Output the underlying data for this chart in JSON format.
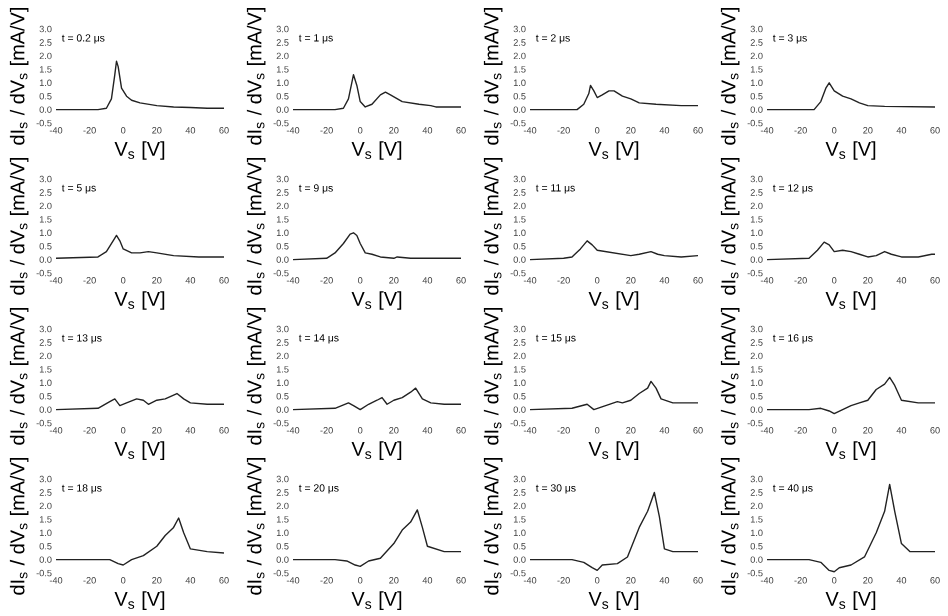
{
  "chart_data": [
    {
      "type": "line",
      "title": "t = 0.2 μs",
      "xlabel": "V$_{s}$ [V]",
      "ylabel": "dI$_{s}$ / dV$_{s}$ [mA/V]",
      "color": "#222222",
      "xlim": [
        -40,
        60
      ],
      "ylim": [
        -0.5,
        3.0
      ],
      "xticks": [
        -40,
        -20,
        0,
        20,
        40,
        60
      ],
      "yticks": [
        -0.5,
        {
          "value": 0,
          "label": "0.0"
        },
        0.5,
        {
          "value": 1,
          "label": "1.0"
        },
        1.5,
        {
          "value": 2,
          "label": "2.0"
        },
        2.5,
        {
          "value": 3,
          "label": "3.0"
        }
      ],
      "x": [
        -40,
        -15,
        -10,
        -7,
        -5,
        -4,
        -3,
        -1,
        2,
        5,
        10,
        20,
        30,
        40,
        50,
        60
      ],
      "values": [
        0.0,
        0.0,
        0.05,
        0.4,
        1.3,
        1.8,
        1.6,
        0.8,
        0.5,
        0.35,
        0.25,
        0.15,
        0.1,
        0.08,
        0.05,
        0.05
      ]
    },
    {
      "type": "line",
      "title": "t = 1 μs",
      "xlabel": "V$_{s}$ [V]",
      "ylabel": "dI$_{s}$ / dV$_{s}$ [mA/V]",
      "color": "#222222",
      "xlim": [
        -40,
        60
      ],
      "ylim": [
        -0.5,
        3.0
      ],
      "xticks": [
        -40,
        -20,
        0,
        20,
        40,
        60
      ],
      "yticks": [
        -0.5,
        {
          "value": 0,
          "label": "0.0"
        },
        0.5,
        {
          "value": 1,
          "label": "1.0"
        },
        1.5,
        {
          "value": 2,
          "label": "2.0"
        },
        2.5,
        {
          "value": 3,
          "label": "3.0"
        }
      ],
      "x": [
        -40,
        -15,
        -10,
        -7,
        -4,
        -2,
        0,
        3,
        7,
        12,
        15,
        18,
        25,
        35,
        42,
        45,
        60
      ],
      "values": [
        0.0,
        0.0,
        0.05,
        0.4,
        1.3,
        0.9,
        0.3,
        0.1,
        0.2,
        0.55,
        0.65,
        0.55,
        0.3,
        0.2,
        0.15,
        0.1,
        0.1
      ]
    },
    {
      "type": "line",
      "title": "t = 2 μs",
      "xlabel": "V$_{s}$ [V]",
      "ylabel": "dI$_{s}$ / dV$_{s}$ [mA/V]",
      "color": "#222222",
      "xlim": [
        -40,
        60
      ],
      "ylim": [
        -0.5,
        3.0
      ],
      "xticks": [
        -40,
        -20,
        0,
        20,
        40,
        60
      ],
      "yticks": [
        -0.5,
        {
          "value": 0,
          "label": "0.0"
        },
        0.5,
        {
          "value": 1,
          "label": "1.0"
        },
        1.5,
        {
          "value": 2,
          "label": "2.0"
        },
        2.5,
        {
          "value": 3,
          "label": "3.0"
        }
      ],
      "x": [
        -40,
        -12,
        -8,
        -5,
        -4,
        -2,
        0,
        3,
        7,
        10,
        15,
        20,
        25,
        35,
        50,
        60
      ],
      "values": [
        0.0,
        0.0,
        0.2,
        0.6,
        0.9,
        0.7,
        0.45,
        0.55,
        0.7,
        0.7,
        0.5,
        0.4,
        0.25,
        0.2,
        0.15,
        0.15
      ]
    },
    {
      "type": "line",
      "title": "t = 3 μs",
      "xlabel": "V$_{s}$ [V]",
      "ylabel": "dI$_{s}$ / dV$_{s}$ [mA/V]",
      "color": "#222222",
      "xlim": [
        -40,
        60
      ],
      "ylim": [
        -0.5,
        3.0
      ],
      "xticks": [
        -40,
        -20,
        0,
        20,
        40,
        60
      ],
      "yticks": [
        -0.5,
        {
          "value": 0,
          "label": "0.0"
        },
        0.5,
        {
          "value": 1,
          "label": "1.0"
        },
        1.5,
        {
          "value": 2,
          "label": "2.0"
        },
        2.5,
        {
          "value": 3,
          "label": "3.0"
        }
      ],
      "x": [
        -40,
        -12,
        -8,
        -5,
        -3,
        0,
        5,
        10,
        15,
        20,
        30,
        60
      ],
      "values": [
        0.0,
        0.0,
        0.3,
        0.8,
        1.0,
        0.7,
        0.5,
        0.4,
        0.25,
        0.15,
        0.12,
        0.1
      ]
    },
    {
      "type": "line",
      "title": "t = 5 μs",
      "xlabel": "V$_{s}$ [V]",
      "ylabel": "dI$_{s}$ / dV$_{s}$ [mA/V]",
      "color": "#222222",
      "xlim": [
        -40,
        60
      ],
      "ylim": [
        -0.5,
        3.0
      ],
      "xticks": [
        -40,
        -20,
        0,
        20,
        40,
        60
      ],
      "yticks": [
        -0.5,
        {
          "value": 0,
          "label": "0.0"
        },
        0.5,
        {
          "value": 1,
          "label": "1.0"
        },
        1.5,
        {
          "value": 2,
          "label": "2.0"
        },
        2.5,
        {
          "value": 3,
          "label": "3.0"
        }
      ],
      "x": [
        -40,
        -15,
        -10,
        -6,
        -4,
        -2,
        0,
        5,
        10,
        15,
        20,
        30,
        45,
        60
      ],
      "values": [
        0.05,
        0.1,
        0.3,
        0.7,
        0.9,
        0.7,
        0.4,
        0.25,
        0.25,
        0.3,
        0.25,
        0.15,
        0.1,
        0.1
      ]
    },
    {
      "type": "line",
      "title": "t = 9 μs",
      "xlabel": "V$_{s}$ [V]",
      "ylabel": "dI$_{s}$ / dV$_{s}$ [mA/V]",
      "color": "#222222",
      "xlim": [
        -40,
        60
      ],
      "ylim": [
        -0.5,
        3.0
      ],
      "xticks": [
        -40,
        -20,
        0,
        20,
        40,
        60
      ],
      "yticks": [
        -0.5,
        {
          "value": 0,
          "label": "0.0"
        },
        0.5,
        {
          "value": 1,
          "label": "1.0"
        },
        1.5,
        {
          "value": 2,
          "label": "2.0"
        },
        2.5,
        {
          "value": 3,
          "label": "3.0"
        }
      ],
      "x": [
        -40,
        -20,
        -15,
        -10,
        -6,
        -4,
        -2,
        0,
        3,
        7,
        12,
        20,
        22,
        30,
        60
      ],
      "values": [
        0.0,
        0.05,
        0.25,
        0.6,
        0.95,
        1.0,
        0.9,
        0.6,
        0.25,
        0.2,
        0.1,
        0.05,
        0.1,
        0.05,
        0.05
      ]
    },
    {
      "type": "line",
      "title": "t = 11 μs",
      "xlabel": "V$_{s}$ [V]",
      "ylabel": "dI$_{s}$ / dV$_{s}$ [mA/V]",
      "color": "#222222",
      "xlim": [
        -40,
        60
      ],
      "ylim": [
        -0.5,
        3.0
      ],
      "xticks": [
        -40,
        -20,
        0,
        20,
        40,
        60
      ],
      "yticks": [
        -0.5,
        {
          "value": 0,
          "label": "0.0"
        },
        0.5,
        {
          "value": 1,
          "label": "1.0"
        },
        1.5,
        {
          "value": 2,
          "label": "2.0"
        },
        2.5,
        {
          "value": 3,
          "label": "3.0"
        }
      ],
      "x": [
        -40,
        -20,
        -15,
        -10,
        -6,
        -3,
        0,
        5,
        10,
        15,
        20,
        25,
        32,
        36,
        40,
        50,
        60
      ],
      "values": [
        0.0,
        0.05,
        0.1,
        0.4,
        0.7,
        0.55,
        0.35,
        0.3,
        0.25,
        0.2,
        0.15,
        0.2,
        0.3,
        0.2,
        0.15,
        0.1,
        0.15
      ]
    },
    {
      "type": "line",
      "title": "t = 12 μs",
      "xlabel": "V$_{s}$ [V]",
      "ylabel": "dI$_{s}$ / dV$_{s}$ [mA/V]",
      "color": "#222222",
      "xlim": [
        -40,
        60
      ],
      "ylim": [
        -0.5,
        3.0
      ],
      "xticks": [
        -40,
        -20,
        0,
        20,
        40,
        60
      ],
      "yticks": [
        -0.5,
        {
          "value": 0,
          "label": "0.0"
        },
        0.5,
        {
          "value": 1,
          "label": "1.0"
        },
        1.5,
        {
          "value": 2,
          "label": "2.0"
        },
        2.5,
        {
          "value": 3,
          "label": "3.0"
        }
      ],
      "x": [
        -40,
        -15,
        -10,
        -6,
        -3,
        0,
        5,
        10,
        15,
        20,
        25,
        30,
        34,
        40,
        50,
        58,
        60
      ],
      "values": [
        0.0,
        0.05,
        0.35,
        0.65,
        0.55,
        0.3,
        0.35,
        0.3,
        0.2,
        0.1,
        0.15,
        0.3,
        0.2,
        0.1,
        0.1,
        0.2,
        0.2
      ]
    },
    {
      "type": "line",
      "title": "t = 13 μs",
      "xlabel": "V$_{s}$ [V]",
      "ylabel": "dI$_{s}$ / dV$_{s}$ [mA/V]",
      "color": "#222222",
      "xlim": [
        -40,
        60
      ],
      "ylim": [
        -0.5,
        3.0
      ],
      "xticks": [
        -40,
        -20,
        0,
        20,
        40,
        60
      ],
      "yticks": [
        -0.5,
        {
          "value": 0,
          "label": "0.0"
        },
        0.5,
        {
          "value": 1,
          "label": "1.0"
        },
        1.5,
        {
          "value": 2,
          "label": "2.0"
        },
        2.5,
        {
          "value": 3,
          "label": "3.0"
        }
      ],
      "x": [
        -40,
        -15,
        -8,
        -5,
        -2,
        2,
        8,
        12,
        15,
        20,
        25,
        32,
        36,
        40,
        50,
        60
      ],
      "values": [
        0.0,
        0.05,
        0.3,
        0.4,
        0.15,
        0.25,
        0.4,
        0.35,
        0.2,
        0.35,
        0.4,
        0.6,
        0.4,
        0.25,
        0.2,
        0.2
      ]
    },
    {
      "type": "line",
      "title": "t = 14 μs",
      "xlabel": "V$_{s}$ [V]",
      "ylabel": "dI$_{s}$ / dV$_{s}$ [mA/V]",
      "color": "#222222",
      "xlim": [
        -40,
        60
      ],
      "ylim": [
        -0.5,
        3.0
      ],
      "xticks": [
        -40,
        -20,
        0,
        20,
        40,
        60
      ],
      "yticks": [
        -0.5,
        {
          "value": 0,
          "label": "0.0"
        },
        0.5,
        {
          "value": 1,
          "label": "1.0"
        },
        1.5,
        {
          "value": 2,
          "label": "2.0"
        },
        2.5,
        {
          "value": 3,
          "label": "3.0"
        }
      ],
      "x": [
        -40,
        -15,
        -7,
        -4,
        0,
        5,
        10,
        13,
        16,
        20,
        25,
        30,
        33,
        37,
        42,
        50,
        60
      ],
      "values": [
        0.0,
        0.05,
        0.25,
        0.15,
        0.0,
        0.2,
        0.35,
        0.45,
        0.2,
        0.35,
        0.45,
        0.65,
        0.8,
        0.4,
        0.25,
        0.2,
        0.2
      ]
    },
    {
      "type": "line",
      "title": "t = 15 μs",
      "xlabel": "V$_{s}$ [V]",
      "ylabel": "dI$_{s}$ / dV$_{s}$ [mA/V]",
      "color": "#222222",
      "xlim": [
        -40,
        60
      ],
      "ylim": [
        -0.5,
        3.0
      ],
      "xticks": [
        -40,
        -20,
        0,
        20,
        40,
        60
      ],
      "yticks": [
        -0.5,
        {
          "value": 0,
          "label": "0.0"
        },
        0.5,
        {
          "value": 1,
          "label": "1.0"
        },
        1.5,
        {
          "value": 2,
          "label": "2.0"
        },
        2.5,
        {
          "value": 3,
          "label": "3.0"
        }
      ],
      "x": [
        -40,
        -15,
        -6,
        -2,
        5,
        12,
        15,
        20,
        25,
        30,
        32,
        35,
        38,
        45,
        60
      ],
      "values": [
        0.0,
        0.05,
        0.2,
        0.0,
        0.15,
        0.3,
        0.25,
        0.35,
        0.6,
        0.8,
        1.05,
        0.8,
        0.4,
        0.25,
        0.25
      ]
    },
    {
      "type": "line",
      "title": "t = 16 μs",
      "xlabel": "V$_{s}$ [V]",
      "ylabel": "dI$_{s}$ / dV$_{s}$ [mA/V]",
      "color": "#222222",
      "xlim": [
        -40,
        60
      ],
      "ylim": [
        -0.5,
        3.0
      ],
      "xticks": [
        -40,
        -20,
        0,
        20,
        40,
        60
      ],
      "yticks": [
        -0.5,
        {
          "value": 0,
          "label": "0.0"
        },
        0.5,
        {
          "value": 1,
          "label": "1.0"
        },
        1.5,
        {
          "value": 2,
          "label": "2.0"
        },
        2.5,
        {
          "value": 3,
          "label": "3.0"
        }
      ],
      "x": [
        -40,
        -15,
        -8,
        -3,
        0,
        5,
        10,
        15,
        20,
        25,
        30,
        33,
        36,
        40,
        50,
        60
      ],
      "values": [
        0.0,
        0.0,
        0.05,
        -0.05,
        -0.15,
        0.0,
        0.15,
        0.25,
        0.35,
        0.75,
        0.95,
        1.2,
        0.9,
        0.35,
        0.25,
        0.25
      ]
    },
    {
      "type": "line",
      "title": "t = 18 μs",
      "xlabel": "V$_{s}$ [V]",
      "ylabel": "dI$_{s}$ / dV$_{s}$ [mA/V]",
      "color": "#222222",
      "xlim": [
        -40,
        60
      ],
      "ylim": [
        -0.5,
        3.0
      ],
      "xticks": [
        -40,
        -20,
        0,
        20,
        40,
        60
      ],
      "yticks": [
        -0.5,
        {
          "value": 0,
          "label": "0.0"
        },
        0.5,
        {
          "value": 1,
          "label": "1.0"
        },
        1.5,
        {
          "value": 2,
          "label": "2.0"
        },
        2.5,
        {
          "value": 3,
          "label": "3.0"
        }
      ],
      "x": [
        -40,
        -15,
        -8,
        -3,
        0,
        5,
        12,
        20,
        25,
        30,
        33,
        36,
        40,
        50,
        60
      ],
      "values": [
        0.0,
        0.0,
        0.0,
        -0.15,
        -0.2,
        0.0,
        0.15,
        0.5,
        0.9,
        1.2,
        1.55,
        1.0,
        0.4,
        0.3,
        0.25
      ]
    },
    {
      "type": "line",
      "title": "t = 20 μs",
      "xlabel": "V$_{s}$ [V]",
      "ylabel": "dI$_{s}$ / dV$_{s}$ [mA/V]",
      "color": "#222222",
      "xlim": [
        -40,
        60
      ],
      "ylim": [
        -0.5,
        3.0
      ],
      "xticks": [
        -40,
        -20,
        0,
        20,
        40,
        60
      ],
      "yticks": [
        -0.5,
        {
          "value": 0,
          "label": "0.0"
        },
        0.5,
        {
          "value": 1,
          "label": "1.0"
        },
        1.5,
        {
          "value": 2,
          "label": "2.0"
        },
        2.5,
        {
          "value": 3,
          "label": "3.0"
        }
      ],
      "x": [
        -40,
        -15,
        -8,
        -3,
        0,
        5,
        12,
        20,
        25,
        30,
        34,
        37,
        40,
        50,
        60
      ],
      "values": [
        0.0,
        0.0,
        -0.05,
        -0.2,
        -0.25,
        -0.05,
        0.05,
        0.6,
        1.1,
        1.4,
        1.85,
        1.2,
        0.5,
        0.3,
        0.3
      ]
    },
    {
      "type": "line",
      "title": "t = 30 μs",
      "xlabel": "V$_{s}$ [V]",
      "ylabel": "dI$_{s}$ / dV$_{s}$ [mA/V]",
      "color": "#222222",
      "xlim": [
        -40,
        60
      ],
      "ylim": [
        -0.5,
        3.0
      ],
      "xticks": [
        -40,
        -20,
        0,
        20,
        40,
        60
      ],
      "yticks": [
        -0.5,
        {
          "value": 0,
          "label": "0.0"
        },
        0.5,
        {
          "value": 1,
          "label": "1.0"
        },
        1.5,
        {
          "value": 2,
          "label": "2.0"
        },
        2.5,
        {
          "value": 3,
          "label": "3.0"
        }
      ],
      "x": [
        -40,
        -15,
        -8,
        -3,
        0,
        3,
        12,
        18,
        25,
        30,
        34,
        37,
        40,
        45,
        60
      ],
      "values": [
        0.0,
        0.0,
        -0.1,
        -0.3,
        -0.4,
        -0.2,
        -0.15,
        0.1,
        1.2,
        1.8,
        2.5,
        1.6,
        0.4,
        0.3,
        0.3
      ]
    },
    {
      "type": "line",
      "title": "t = 40 μs",
      "xlabel": "V$_{s}$ [V]",
      "ylabel": "dI$_{s}$ / dV$_{s}$ [mA/V]",
      "color": "#222222",
      "xlim": [
        -40,
        60
      ],
      "ylim": [
        -0.5,
        3.0
      ],
      "xticks": [
        -40,
        -20,
        0,
        20,
        40,
        60
      ],
      "yticks": [
        -0.5,
        {
          "value": 0,
          "label": "0.0"
        },
        0.5,
        {
          "value": 1,
          "label": "1.0"
        },
        1.5,
        {
          "value": 2,
          "label": "2.0"
        },
        2.5,
        {
          "value": 3,
          "label": "3.0"
        }
      ],
      "x": [
        -40,
        -15,
        -8,
        -3,
        0,
        3,
        10,
        18,
        25,
        30,
        33,
        36,
        40,
        45,
        60
      ],
      "values": [
        0.0,
        0.0,
        -0.1,
        -0.4,
        -0.45,
        -0.3,
        -0.2,
        0.1,
        1.0,
        1.8,
        2.8,
        1.8,
        0.6,
        0.3,
        0.3
      ]
    }
  ]
}
